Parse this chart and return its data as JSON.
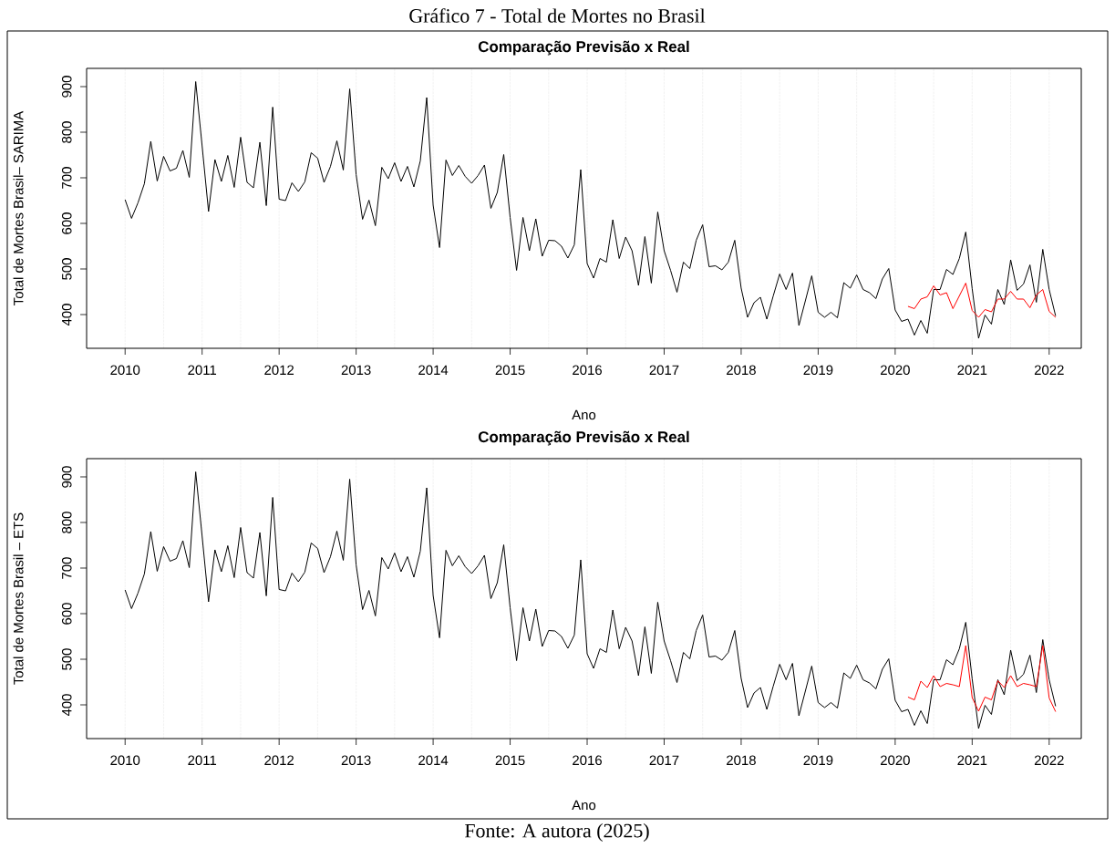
{
  "chart_data": [
    {
      "type": "line",
      "title": "Comparação Previsão x Real",
      "xlabel": "Ano",
      "ylabel": "Total de Mortes Brasil– SARIMA",
      "annotations": [
        "Gráfico 7 - Total de Mortes no Brasil"
      ],
      "x": [
        "2010-01",
        "2010-02",
        "2010-03",
        "2010-04",
        "2010-05",
        "2010-06",
        "2010-07",
        "2010-08",
        "2010-09",
        "2010-10",
        "2010-11",
        "2010-12",
        "2011-01",
        "2011-02",
        "2011-03",
        "2011-04",
        "2011-05",
        "2011-06",
        "2011-07",
        "2011-08",
        "2011-09",
        "2011-10",
        "2011-11",
        "2011-12",
        "2012-01",
        "2012-02",
        "2012-03",
        "2012-04",
        "2012-05",
        "2012-06",
        "2012-07",
        "2012-08",
        "2012-09",
        "2012-10",
        "2012-11",
        "2012-12",
        "2013-01",
        "2013-02",
        "2013-03",
        "2013-04",
        "2013-05",
        "2013-06",
        "2013-07",
        "2013-08",
        "2013-09",
        "2013-10",
        "2013-11",
        "2013-12",
        "2014-01",
        "2014-02",
        "2014-03",
        "2014-04",
        "2014-05",
        "2014-06",
        "2014-07",
        "2014-08",
        "2014-09",
        "2014-10",
        "2014-11",
        "2014-12",
        "2015-01",
        "2015-02",
        "2015-03",
        "2015-04",
        "2015-05",
        "2015-06",
        "2015-07",
        "2015-08",
        "2015-09",
        "2015-10",
        "2015-11",
        "2015-12",
        "2016-01",
        "2016-02",
        "2016-03",
        "2016-04",
        "2016-05",
        "2016-06",
        "2016-07",
        "2016-08",
        "2016-09",
        "2016-10",
        "2016-11",
        "2016-12",
        "2017-01",
        "2017-02",
        "2017-03",
        "2017-04",
        "2017-05",
        "2017-06",
        "2017-07",
        "2017-08",
        "2017-09",
        "2017-10",
        "2017-11",
        "2017-12",
        "2018-01",
        "2018-02",
        "2018-03",
        "2018-04",
        "2018-05",
        "2018-06",
        "2018-07",
        "2018-08",
        "2018-09",
        "2018-10",
        "2018-11",
        "2018-12",
        "2019-01",
        "2019-02",
        "2019-03",
        "2019-04",
        "2019-05",
        "2019-06",
        "2019-07",
        "2019-08",
        "2019-09",
        "2019-10",
        "2019-11",
        "2019-12",
        "2020-01",
        "2020-02",
        "2020-03",
        "2020-04",
        "2020-05",
        "2020-06",
        "2020-07",
        "2020-08",
        "2020-09",
        "2020-10",
        "2020-11",
        "2020-12",
        "2021-01",
        "2021-02",
        "2021-03",
        "2021-04",
        "2021-05",
        "2021-06",
        "2021-07",
        "2021-08",
        "2021-09",
        "2021-10",
        "2021-11",
        "2021-12",
        "2022-01",
        "2022-02"
      ],
      "series": [
        {
          "color": "#000000",
          "values": [
            652,
            611,
            645,
            687,
            780,
            693,
            747,
            715,
            721,
            760,
            701,
            911,
            770,
            626,
            740,
            692,
            749,
            679,
            789,
            690,
            678,
            778,
            639,
            855,
            653,
            650,
            689,
            670,
            691,
            755,
            743,
            690,
            725,
            781,
            717,
            895,
            707,
            609,
            651,
            595,
            723,
            698,
            733,
            692,
            725,
            680,
            737,
            876,
            640,
            547,
            739,
            705,
            727,
            703,
            688,
            705,
            728,
            633,
            668,
            751,
            613,
            497,
            613,
            540,
            610,
            528,
            563,
            562,
            550,
            524,
            553,
            718,
            512,
            480,
            523,
            515,
            608,
            523,
            570,
            540,
            464,
            571,
            469,
            625,
            540,
            497,
            449,
            515,
            501,
            563,
            597,
            505,
            507,
            498,
            515,
            563,
            458,
            394,
            426,
            438,
            390,
            441,
            489,
            455,
            491,
            376,
            430,
            485,
            405,
            394,
            405,
            393,
            470,
            458,
            487,
            455,
            448,
            435,
            478,
            501,
            410,
            385,
            390,
            355,
            387,
            359,
            455,
            455,
            499,
            488,
            523,
            581,
            457,
            348,
            399,
            379,
            455,
            422,
            520,
            453,
            467,
            509,
            427,
            543,
            455,
            397
          ]
        },
        {
          "color": "#ff0000",
          "x": [
            "2020-03",
            "2020-04",
            "2020-05",
            "2020-06",
            "2020-07",
            "2020-08",
            "2020-09",
            "2020-10",
            "2020-11",
            "2020-12",
            "2021-01",
            "2021-02",
            "2021-03",
            "2021-04",
            "2021-05",
            "2021-06",
            "2021-07",
            "2021-08",
            "2021-09",
            "2021-10",
            "2021-11",
            "2021-12",
            "2022-01",
            "2022-02"
          ],
          "values": [
            418,
            413,
            434,
            439,
            463,
            443,
            448,
            413,
            441,
            469,
            409,
            394,
            411,
            406,
            434,
            434,
            451,
            434,
            434,
            415,
            443,
            455,
            407,
            394
          ]
        }
      ],
      "xlim": [
        "2009-07",
        "2022-06"
      ],
      "xticks": [
        "2010",
        "2011",
        "2012",
        "2013",
        "2014",
        "2015",
        "2016",
        "2017",
        "2018",
        "2019",
        "2020",
        "2021",
        "2022"
      ],
      "ylim": [
        326,
        940
      ],
      "yticks": [
        400,
        500,
        600,
        700,
        800,
        900
      ],
      "grid": "x"
    },
    {
      "type": "line",
      "title": "Comparação Previsão x Real",
      "xlabel": "Ano",
      "ylabel": "Total de Mortes Brasil – ETS",
      "annotations": [
        "Fonte: A autora (2025)"
      ],
      "x": [
        "2010-01",
        "2010-02",
        "2010-03",
        "2010-04",
        "2010-05",
        "2010-06",
        "2010-07",
        "2010-08",
        "2010-09",
        "2010-10",
        "2010-11",
        "2010-12",
        "2011-01",
        "2011-02",
        "2011-03",
        "2011-04",
        "2011-05",
        "2011-06",
        "2011-07",
        "2011-08",
        "2011-09",
        "2011-10",
        "2011-11",
        "2011-12",
        "2012-01",
        "2012-02",
        "2012-03",
        "2012-04",
        "2012-05",
        "2012-06",
        "2012-07",
        "2012-08",
        "2012-09",
        "2012-10",
        "2012-11",
        "2012-12",
        "2013-01",
        "2013-02",
        "2013-03",
        "2013-04",
        "2013-05",
        "2013-06",
        "2013-07",
        "2013-08",
        "2013-09",
        "2013-10",
        "2013-11",
        "2013-12",
        "2014-01",
        "2014-02",
        "2014-03",
        "2014-04",
        "2014-05",
        "2014-06",
        "2014-07",
        "2014-08",
        "2014-09",
        "2014-10",
        "2014-11",
        "2014-12",
        "2015-01",
        "2015-02",
        "2015-03",
        "2015-04",
        "2015-05",
        "2015-06",
        "2015-07",
        "2015-08",
        "2015-09",
        "2015-10",
        "2015-11",
        "2015-12",
        "2016-01",
        "2016-02",
        "2016-03",
        "2016-04",
        "2016-05",
        "2016-06",
        "2016-07",
        "2016-08",
        "2016-09",
        "2016-10",
        "2016-11",
        "2016-12",
        "2017-01",
        "2017-02",
        "2017-03",
        "2017-04",
        "2017-05",
        "2017-06",
        "2017-07",
        "2017-08",
        "2017-09",
        "2017-10",
        "2017-11",
        "2017-12",
        "2018-01",
        "2018-02",
        "2018-03",
        "2018-04",
        "2018-05",
        "2018-06",
        "2018-07",
        "2018-08",
        "2018-09",
        "2018-10",
        "2018-11",
        "2018-12",
        "2019-01",
        "2019-02",
        "2019-03",
        "2019-04",
        "2019-05",
        "2019-06",
        "2019-07",
        "2019-08",
        "2019-09",
        "2019-10",
        "2019-11",
        "2019-12",
        "2020-01",
        "2020-02",
        "2020-03",
        "2020-04",
        "2020-05",
        "2020-06",
        "2020-07",
        "2020-08",
        "2020-09",
        "2020-10",
        "2020-11",
        "2020-12",
        "2021-01",
        "2021-02",
        "2021-03",
        "2021-04",
        "2021-05",
        "2021-06",
        "2021-07",
        "2021-08",
        "2021-09",
        "2021-10",
        "2021-11",
        "2021-12",
        "2022-01",
        "2022-02"
      ],
      "series": [
        {
          "color": "#000000",
          "values": [
            652,
            611,
            645,
            687,
            780,
            693,
            747,
            715,
            721,
            760,
            701,
            911,
            770,
            626,
            740,
            692,
            749,
            679,
            789,
            690,
            678,
            778,
            639,
            855,
            653,
            650,
            689,
            670,
            691,
            755,
            743,
            690,
            725,
            781,
            717,
            895,
            707,
            609,
            651,
            595,
            723,
            698,
            733,
            692,
            725,
            680,
            737,
            876,
            640,
            547,
            739,
            705,
            727,
            703,
            688,
            705,
            728,
            633,
            668,
            751,
            613,
            497,
            613,
            540,
            610,
            528,
            563,
            562,
            550,
            524,
            553,
            718,
            512,
            480,
            523,
            515,
            608,
            523,
            570,
            540,
            464,
            571,
            469,
            625,
            540,
            497,
            449,
            515,
            501,
            563,
            597,
            505,
            507,
            498,
            515,
            563,
            458,
            394,
            426,
            438,
            390,
            441,
            489,
            455,
            491,
            376,
            430,
            485,
            405,
            394,
            405,
            393,
            470,
            458,
            487,
            455,
            448,
            435,
            478,
            501,
            410,
            385,
            390,
            355,
            387,
            359,
            455,
            455,
            499,
            488,
            523,
            581,
            457,
            348,
            399,
            379,
            455,
            422,
            520,
            453,
            467,
            509,
            427,
            543,
            455,
            397
          ]
        },
        {
          "color": "#ff0000",
          "x": [
            "2020-03",
            "2020-04",
            "2020-05",
            "2020-06",
            "2020-07",
            "2020-08",
            "2020-09",
            "2020-10",
            "2020-11",
            "2020-12",
            "2021-01",
            "2021-02",
            "2021-03",
            "2021-04",
            "2021-05",
            "2021-06",
            "2021-07",
            "2021-08",
            "2021-09",
            "2021-10",
            "2021-11",
            "2021-12",
            "2022-01",
            "2022-02"
          ],
          "values": [
            417,
            411,
            452,
            438,
            464,
            440,
            447,
            444,
            440,
            530,
            416,
            386,
            417,
            411,
            453,
            438,
            464,
            440,
            447,
            444,
            440,
            530,
            415,
            385
          ]
        }
      ],
      "xlim": [
        "2009-07",
        "2022-06"
      ],
      "xticks": [
        "2010",
        "2011",
        "2012",
        "2013",
        "2014",
        "2015",
        "2016",
        "2017",
        "2018",
        "2019",
        "2020",
        "2021",
        "2022"
      ],
      "ylim": [
        326,
        940
      ],
      "yticks": [
        400,
        500,
        600,
        700,
        800,
        900
      ],
      "grid": "x"
    }
  ]
}
